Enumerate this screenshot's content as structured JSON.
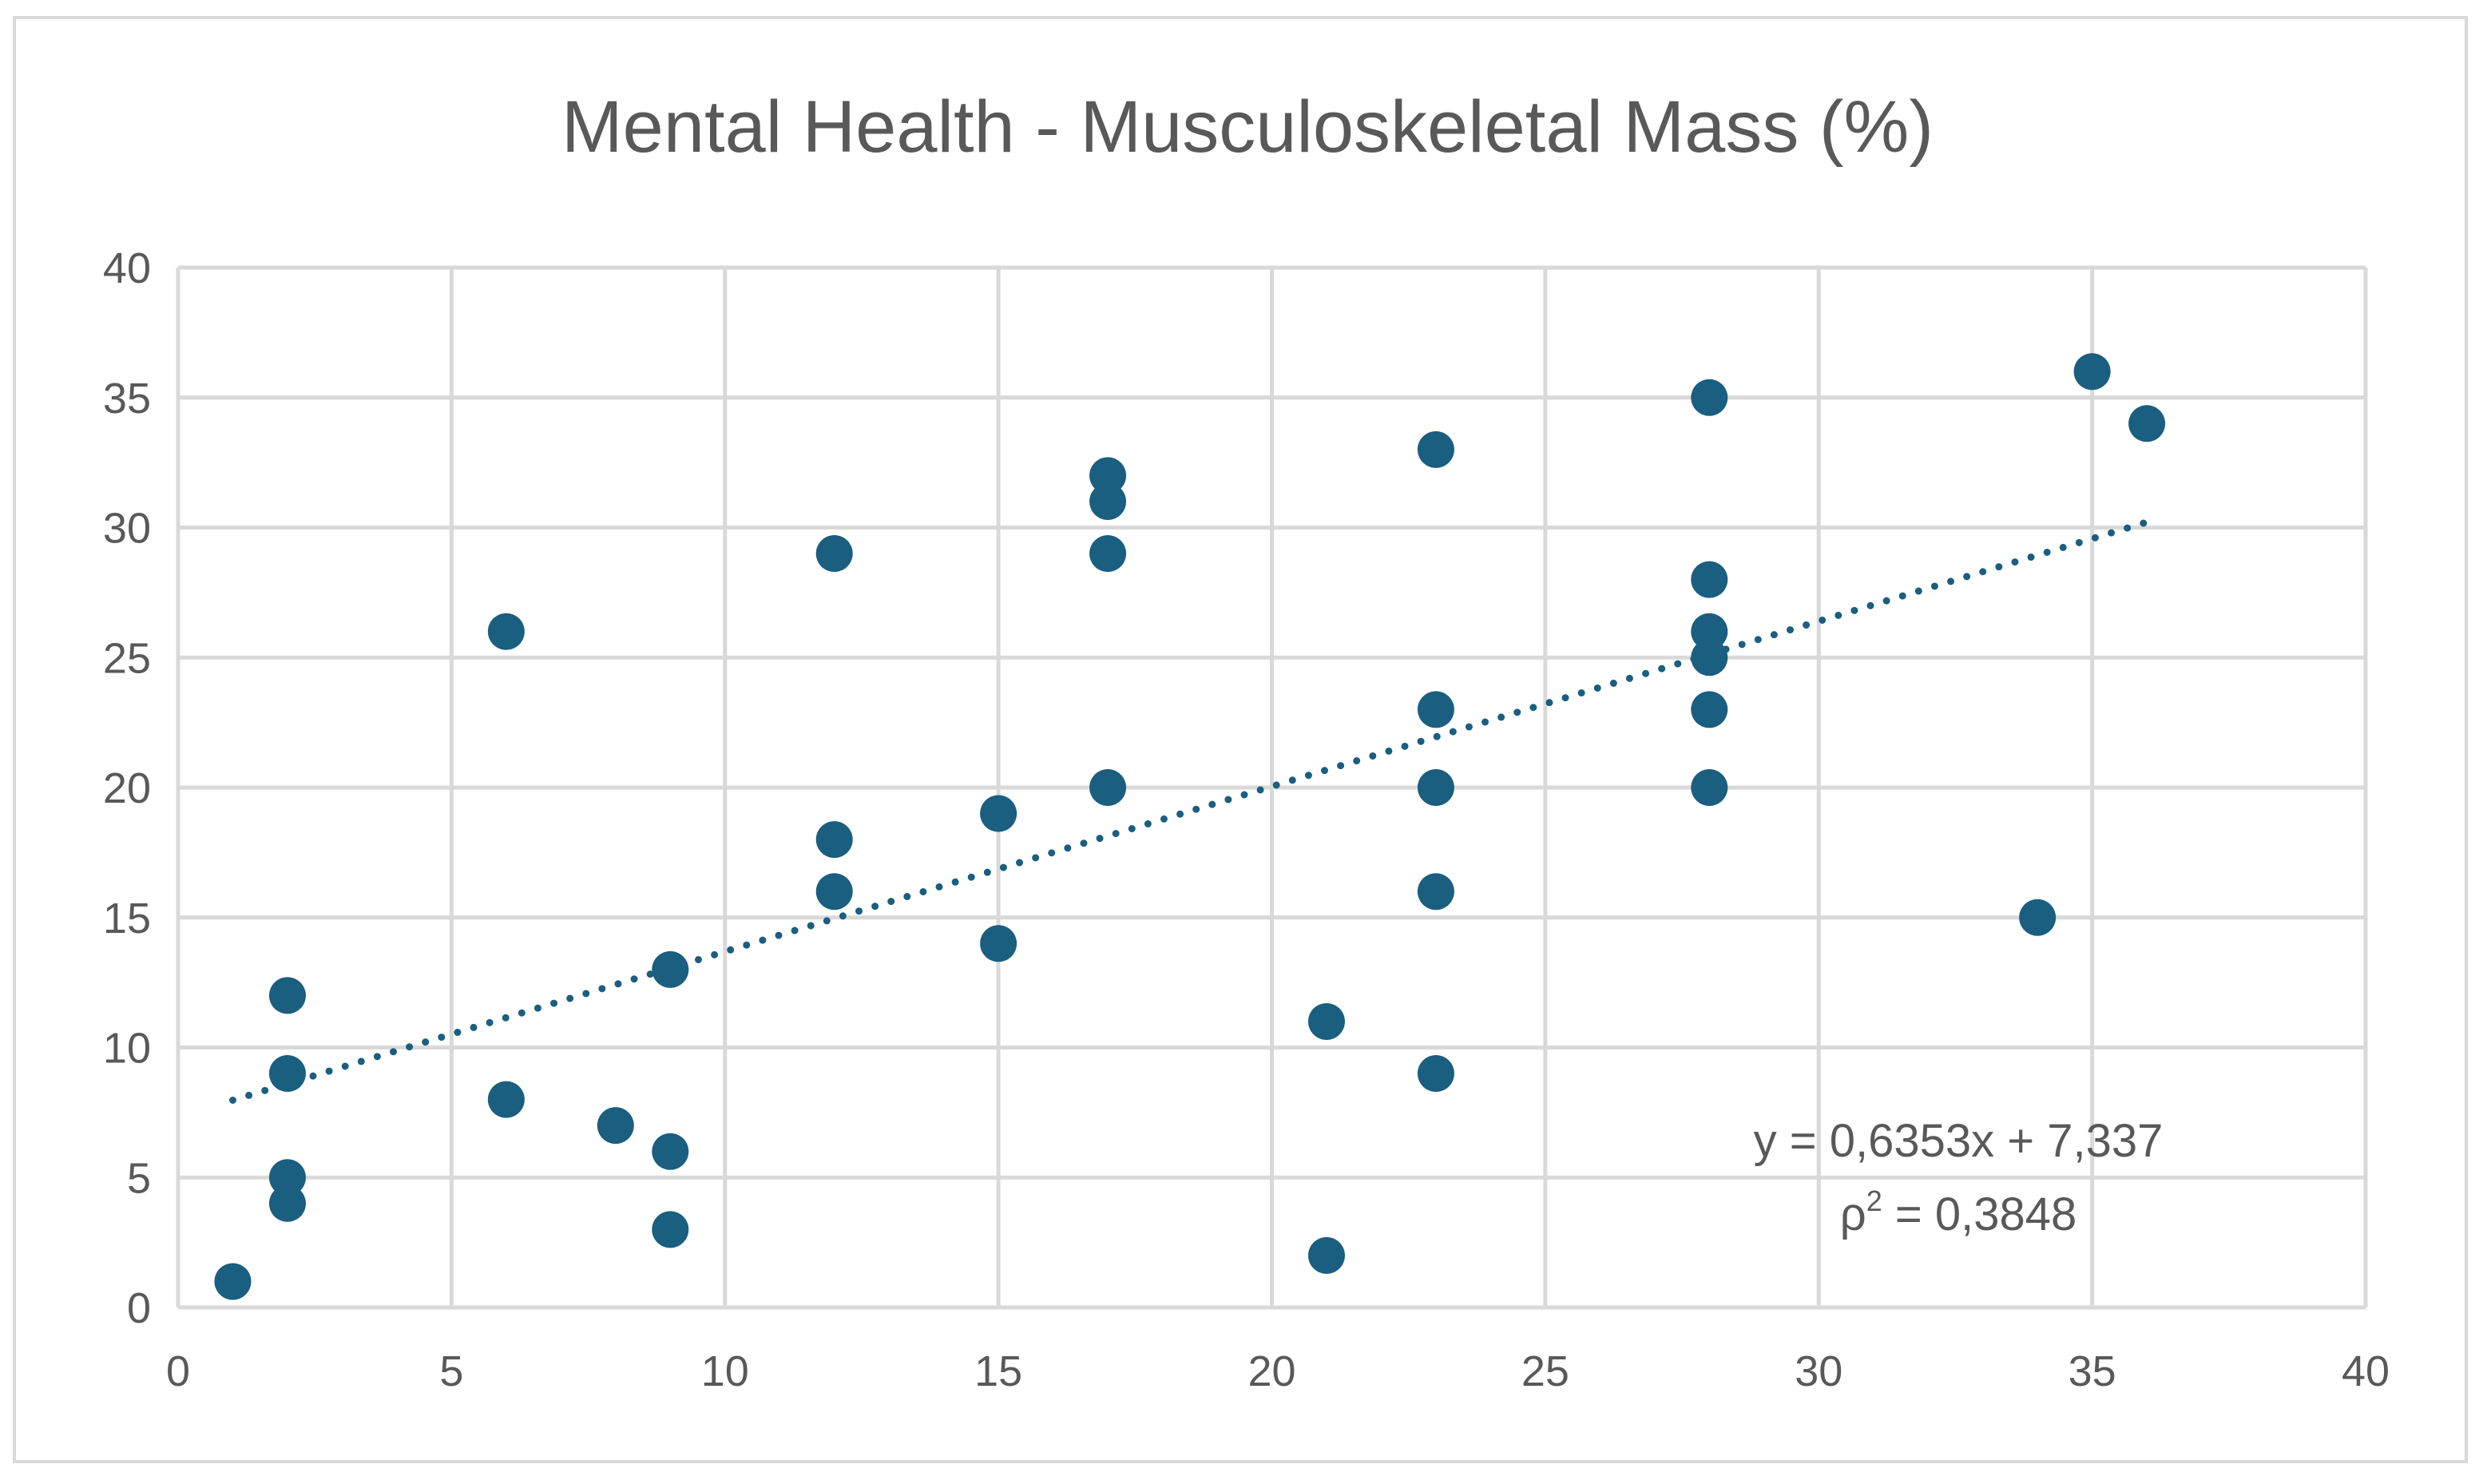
{
  "chart_data": {
    "type": "scatter",
    "title": "Mental Health - Musculoskeletal Mass (%)",
    "xlabel": "",
    "ylabel": "",
    "xlim": [
      0,
      40
    ],
    "ylim": [
      0,
      40
    ],
    "x_ticks": [
      0,
      5,
      10,
      15,
      20,
      25,
      30,
      35,
      40
    ],
    "y_ticks": [
      0,
      5,
      10,
      15,
      20,
      25,
      30,
      35,
      40
    ],
    "grid": true,
    "legend": "none",
    "point_color": "#1a5e80",
    "series": [
      {
        "points": [
          [
            1,
            1
          ],
          [
            2,
            12
          ],
          [
            2,
            9
          ],
          [
            2,
            5
          ],
          [
            2,
            4
          ],
          [
            6,
            26
          ],
          [
            6,
            8
          ],
          [
            8,
            7
          ],
          [
            9,
            13
          ],
          [
            9,
            6
          ],
          [
            9,
            3
          ],
          [
            12,
            29
          ],
          [
            12,
            18
          ],
          [
            12,
            16
          ],
          [
            15,
            19
          ],
          [
            15,
            14
          ],
          [
            17,
            32
          ],
          [
            17,
            31
          ],
          [
            17,
            29
          ],
          [
            17,
            20
          ],
          [
            21,
            11
          ],
          [
            21,
            2
          ],
          [
            23,
            33
          ],
          [
            23,
            23
          ],
          [
            23,
            20
          ],
          [
            23,
            16
          ],
          [
            23,
            9
          ],
          [
            28,
            35
          ],
          [
            28,
            28
          ],
          [
            28,
            26
          ],
          [
            28,
            25
          ],
          [
            28,
            23
          ],
          [
            28,
            20
          ],
          [
            34,
            15
          ],
          [
            35,
            36
          ],
          [
            36,
            34
          ]
        ]
      }
    ],
    "trendline": {
      "type": "linear",
      "style": "dotted",
      "slope": 0.6353,
      "intercept": 7.337,
      "x_range": [
        1,
        36
      ],
      "equation": "y = 0,6353x + 7,337",
      "r2_prefix": "ρ",
      "r2_suffix": " = 0,3848",
      "r2_exponent": "2"
    }
  }
}
